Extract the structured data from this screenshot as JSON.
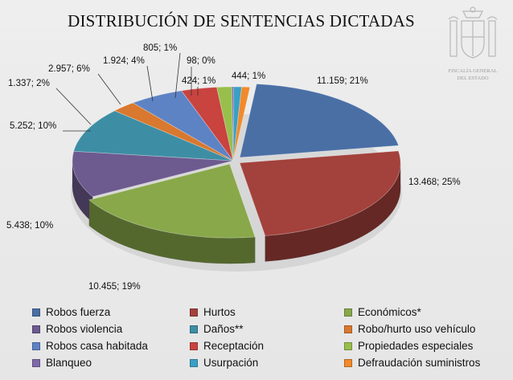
{
  "chart_data": {
    "type": "pie",
    "title": "DISTRIBUCIÓN DE SENTENCIAS DICTADAS",
    "slices": [
      {
        "name": "Robos fuerza",
        "value": 11159,
        "label": "11.159; 21%",
        "color": "#4a6fa5"
      },
      {
        "name": "Hurtos",
        "value": 13468,
        "label": "13.468; 25%",
        "color": "#a3413c"
      },
      {
        "name": "Económicos*",
        "value": 10455,
        "label": "10.455; 19%",
        "color": "#88a84a"
      },
      {
        "name": "Robos violencia",
        "value": 5438,
        "label": "5.438; 10%",
        "color": "#6d5a8f"
      },
      {
        "name": "Daños**",
        "value": 5252,
        "label": "5.252; 10%",
        "color": "#3d8ea4"
      },
      {
        "name": "Robo/hurto uso vehículo",
        "value": 1337,
        "label": "1.337; 2%",
        "color": "#d9782f"
      },
      {
        "name": "Robos casa habitada",
        "value": 2957,
        "label": "2.957; 6%",
        "color": "#5d83c4"
      },
      {
        "name": "Receptación",
        "value": 1924,
        "label": "1.924; 4%",
        "color": "#c9433f"
      },
      {
        "name": "Propiedades especiales",
        "value": 805,
        "label": "805; 1%",
        "color": "#98bf4c"
      },
      {
        "name": "Blanqueo",
        "value": 98,
        "label": "98; 0%",
        "color": "#7e68a8"
      },
      {
        "name": "Usurpación",
        "value": 424,
        "label": "424; 1%",
        "color": "#3aa0c4"
      },
      {
        "name": "Defraudación suministros",
        "value": 444,
        "label": "444; 1%",
        "color": "#f08a2c"
      }
    ]
  },
  "seal": {
    "line1": "FISCALÍA GENERAL",
    "line2": "DEL ESTADO"
  }
}
